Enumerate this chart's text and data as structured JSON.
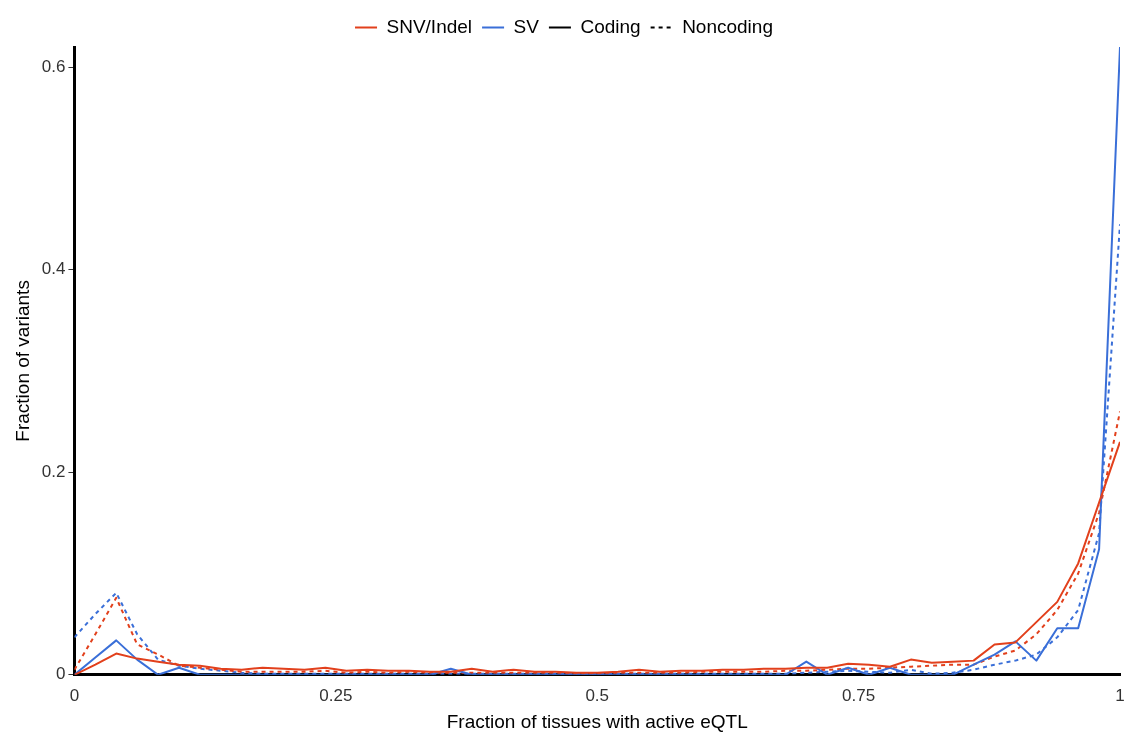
{
  "chart_data": {
    "type": "line",
    "xlabel": "Fraction of tissues with active eQTL",
    "ylabel": "Fraction of variants",
    "x": [
      0,
      0.02,
      0.04,
      0.06,
      0.08,
      0.1,
      0.12,
      0.14,
      0.16,
      0.18,
      0.2,
      0.22,
      0.24,
      0.26,
      0.28,
      0.3,
      0.32,
      0.34,
      0.36,
      0.38,
      0.4,
      0.42,
      0.44,
      0.46,
      0.48,
      0.5,
      0.52,
      0.54,
      0.56,
      0.58,
      0.6,
      0.62,
      0.64,
      0.66,
      0.68,
      0.7,
      0.72,
      0.74,
      0.76,
      0.78,
      0.8,
      0.82,
      0.84,
      0.86,
      0.88,
      0.9,
      0.92,
      0.94,
      0.96,
      0.98,
      1
    ],
    "series": [
      {
        "name": "SNV/Indel",
        "color": "#e2401c",
        "line_style": "solid",
        "values": [
          0,
          0.01,
          0.021,
          0.016,
          0.013,
          0.01,
          0.009,
          0.006,
          0.005,
          0.007,
          0.006,
          0.005,
          0.007,
          0.004,
          0.005,
          0.004,
          0.004,
          0.003,
          0.003,
          0.006,
          0.003,
          0.005,
          0.003,
          0.003,
          0.002,
          0.002,
          0.003,
          0.005,
          0.003,
          0.004,
          0.004,
          0.005,
          0.005,
          0.006,
          0.006,
          0.007,
          0.007,
          0.011,
          0.01,
          0.008,
          0.015,
          0.012,
          0.013,
          0.014,
          0.03,
          0.032,
          0.052,
          0.072,
          0.11,
          0.17,
          0.23
        ]
      },
      {
        "name": "SV",
        "color": "#3a6fd8",
        "line_style": "solid",
        "values": [
          0,
          0.017,
          0.034,
          0.015,
          0,
          0.007,
          0,
          0,
          0,
          0,
          0,
          0,
          0,
          0,
          0,
          0,
          0,
          0,
          0.006,
          0,
          0,
          0,
          0,
          0,
          0,
          0,
          0,
          0,
          0,
          0,
          0,
          0,
          0,
          0,
          0,
          0.013,
          0,
          0.007,
          0,
          0.007,
          0,
          0,
          0,
          0.01,
          0.02,
          0.033,
          0.014,
          0.046,
          0.046,
          0.124,
          0.62
        ]
      },
      {
        "color": "#e2401c",
        "line_style": "dashed",
        "values": [
          0.005,
          0.04,
          0.076,
          0.03,
          0.02,
          0.009,
          0.007,
          0.005,
          0.003,
          0.003,
          0.003,
          0.003,
          0.004,
          0.002,
          0.003,
          0.002,
          0.003,
          0.002,
          0.002,
          0.002,
          0.002,
          0.002,
          0.002,
          0.002,
          0.001,
          0.001,
          0.002,
          0.002,
          0.002,
          0.002,
          0.003,
          0.003,
          0.003,
          0.003,
          0.004,
          0.004,
          0.005,
          0.006,
          0.006,
          0.007,
          0.008,
          0.009,
          0.01,
          0.01,
          0.018,
          0.024,
          0.04,
          0.064,
          0.1,
          0.16,
          0.26
        ]
      },
      {
        "color": "#3a6fd8",
        "line_style": "dashed",
        "values": [
          0.037,
          0.06,
          0.081,
          0.04,
          0.015,
          0.009,
          0.006,
          0.004,
          0.002,
          0.001,
          0.001,
          0.001,
          0.001,
          0.001,
          0.001,
          0.001,
          0.001,
          0.001,
          0.001,
          0.001,
          0.001,
          0.001,
          0.001,
          0.001,
          0.001,
          0.001,
          0.001,
          0.001,
          0.001,
          0.001,
          0.001,
          0.001,
          0.001,
          0.001,
          0.001,
          0.002,
          0.003,
          0.004,
          0.003,
          0.002,
          0.005,
          0.001,
          0.002,
          0.005,
          0.01,
          0.014,
          0.02,
          0.037,
          0.064,
          0.14,
          0.445
        ]
      }
    ],
    "annotations": [
      "Coding",
      "Noncoding"
    ],
    "xlim": [
      0,
      1
    ],
    "xticks": [
      0,
      0.25,
      0.5,
      0.75,
      1
    ],
    "ylim": [
      0,
      0.62
    ],
    "yticks": [
      0,
      0.2,
      0.4,
      0.6
    ],
    "grid": false,
    "legend": "top",
    "marker": "none"
  }
}
